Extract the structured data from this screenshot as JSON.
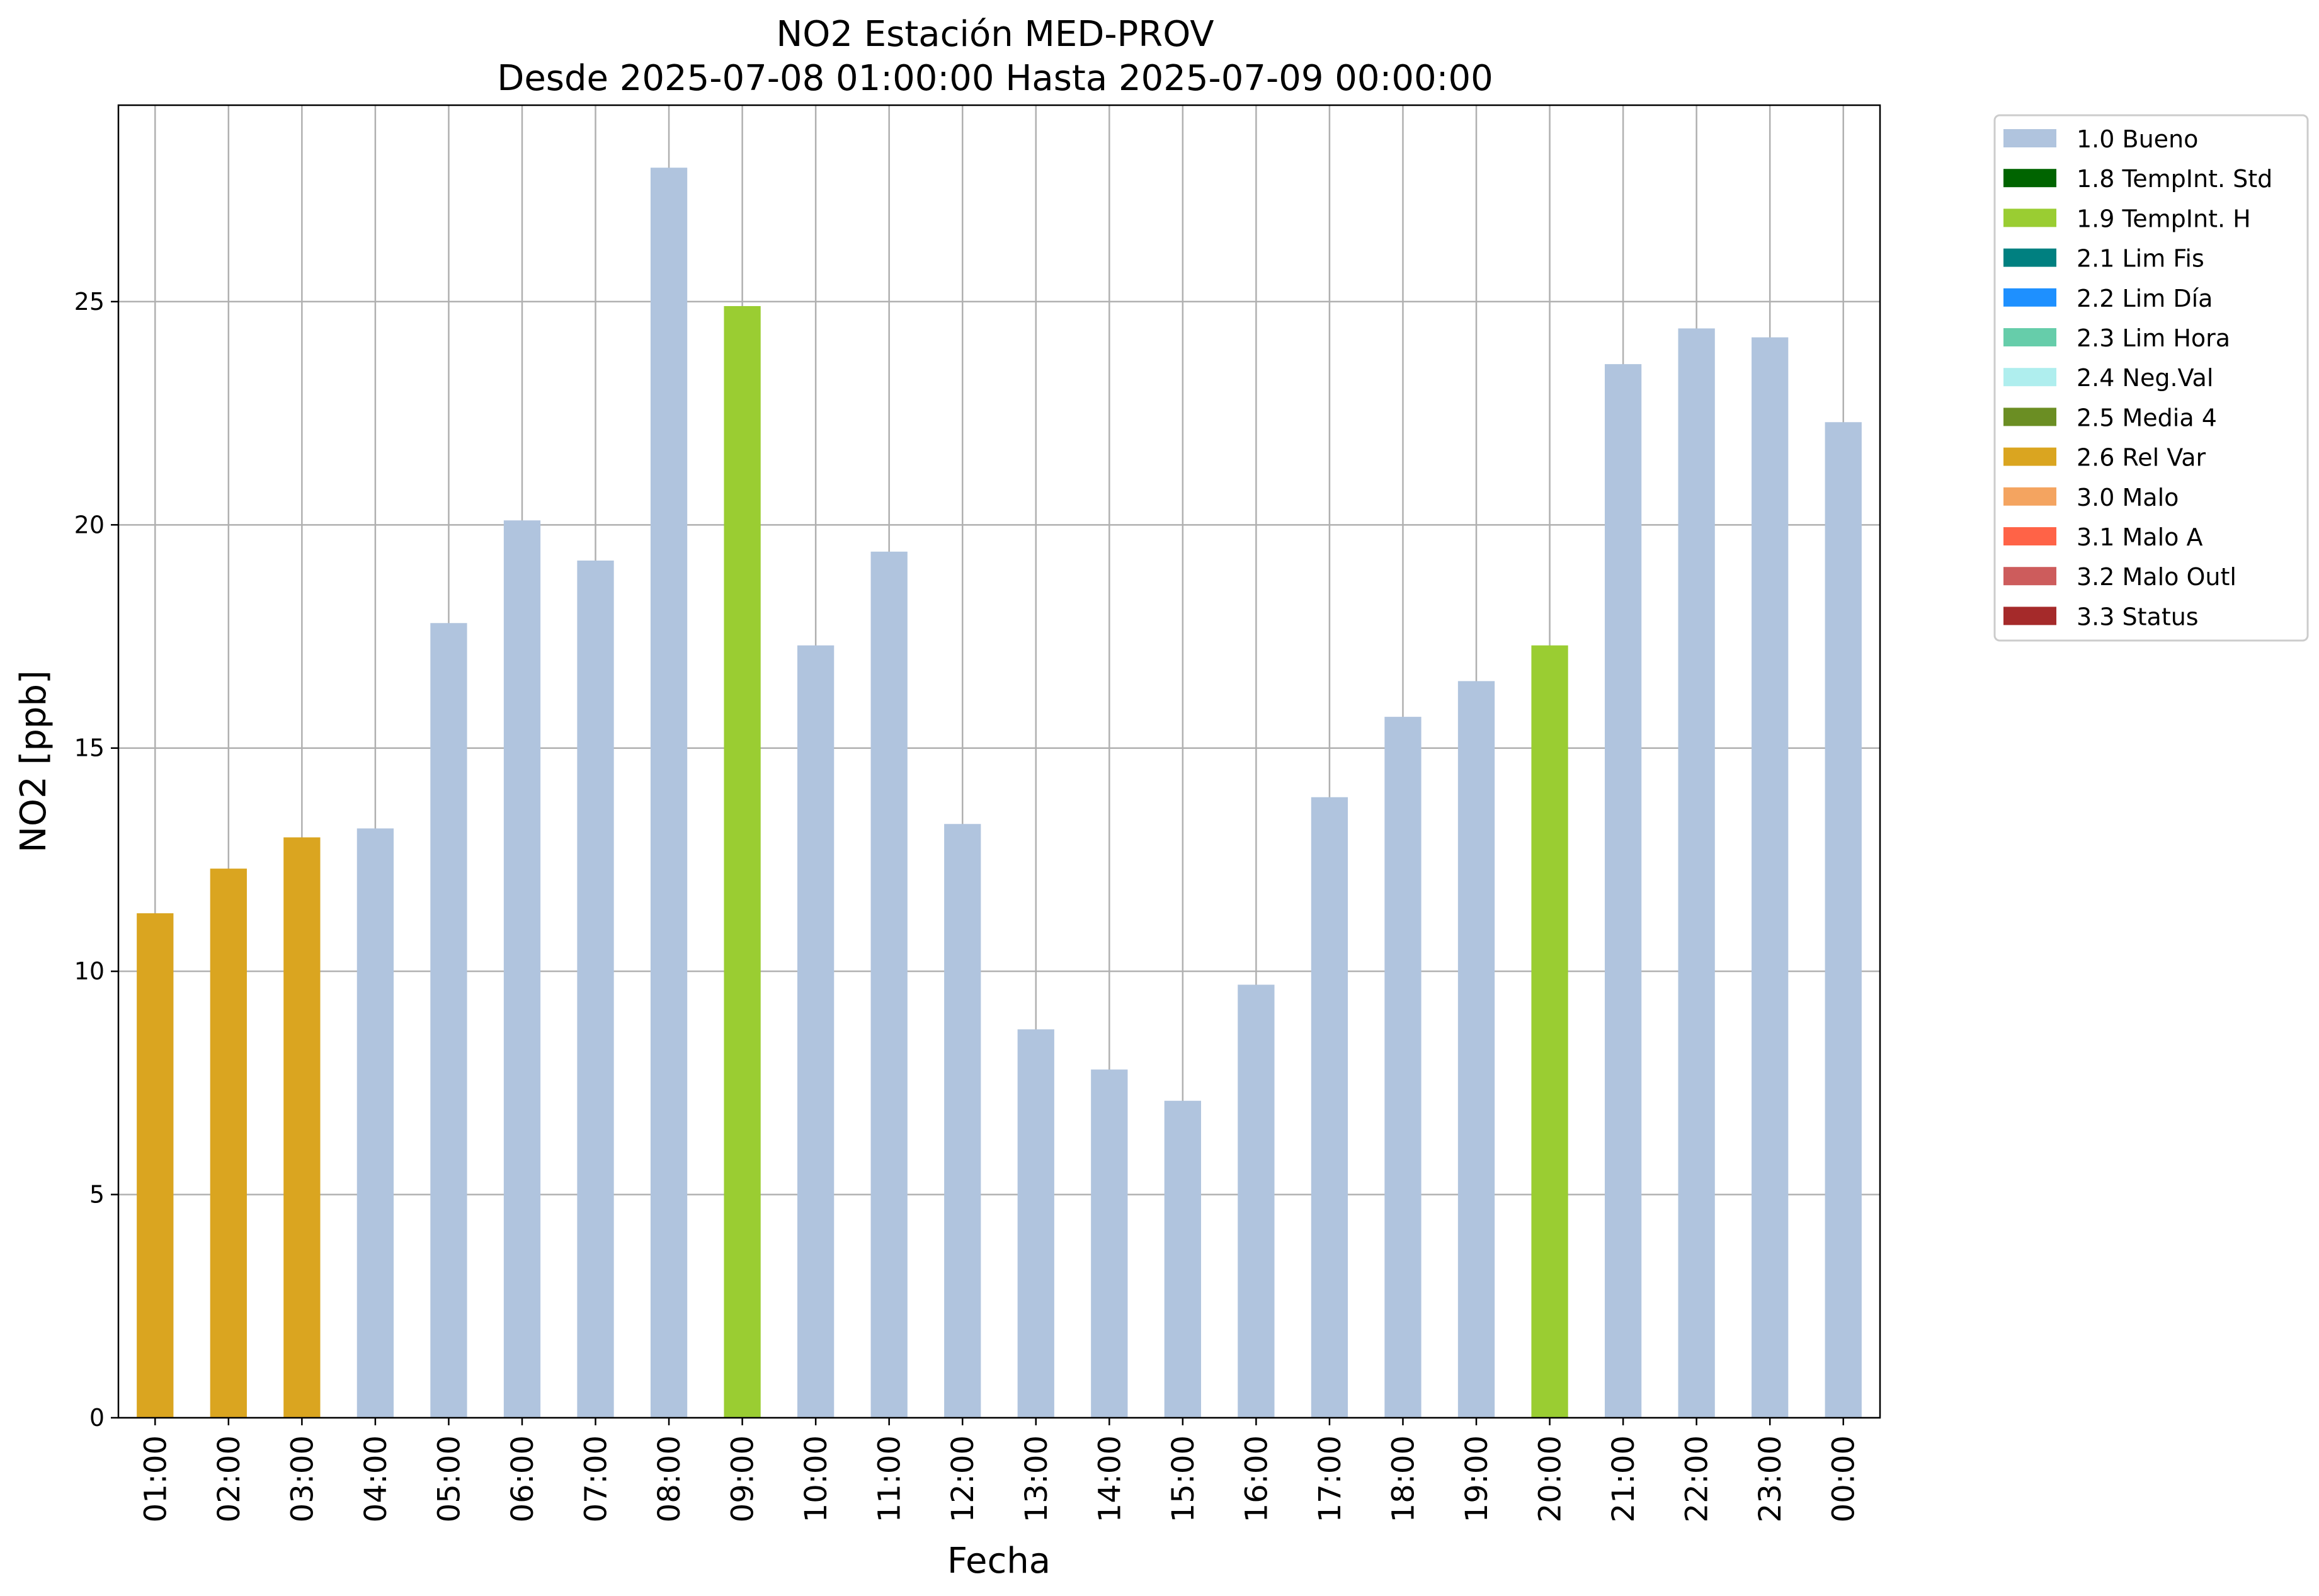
{
  "chart_data": {
    "type": "bar",
    "title": "NO2 Estación MED-PROV",
    "subtitle": "Desde 2025-07-08 01:00:00 Hasta 2025-07-09 00:00:00",
    "xlabel": "Fecha",
    "ylabel": "NO2 [ppb]",
    "ylim": [
      0,
      29.4
    ],
    "yticks": [
      0,
      5,
      10,
      15,
      20,
      25
    ],
    "grid": true,
    "legend_position": "outside-right",
    "categories": [
      "01:00",
      "02:00",
      "03:00",
      "04:00",
      "05:00",
      "06:00",
      "07:00",
      "08:00",
      "09:00",
      "10:00",
      "11:00",
      "12:00",
      "13:00",
      "14:00",
      "15:00",
      "16:00",
      "17:00",
      "18:00",
      "19:00",
      "20:00",
      "21:00",
      "22:00",
      "23:00",
      "00:00"
    ],
    "values": [
      11.3,
      12.3,
      13.0,
      13.2,
      17.8,
      20.1,
      19.2,
      28.0,
      24.9,
      17.3,
      19.4,
      13.3,
      8.7,
      7.8,
      7.1,
      9.7,
      13.9,
      15.7,
      16.5,
      17.3,
      23.6,
      24.4,
      24.2,
      22.3
    ],
    "flags": [
      "2.6 Rel Var",
      "2.6 Rel Var",
      "2.6 Rel Var",
      "1.0 Bueno",
      "1.0 Bueno",
      "1.0 Bueno",
      "1.0 Bueno",
      "1.0 Bueno",
      "1.9 TempInt. H",
      "1.0 Bueno",
      "1.0 Bueno",
      "1.0 Bueno",
      "1.0 Bueno",
      "1.0 Bueno",
      "1.0 Bueno",
      "1.0 Bueno",
      "1.0 Bueno",
      "1.0 Bueno",
      "1.0 Bueno",
      "1.9 TempInt. H",
      "1.0 Bueno",
      "1.0 Bueno",
      "1.0 Bueno",
      "1.0 Bueno"
    ],
    "legend": [
      {
        "label": "1.0 Bueno",
        "color": "#b0c4de"
      },
      {
        "label": "1.8 TempInt. Std",
        "color": "#006400"
      },
      {
        "label": "1.9 TempInt. H",
        "color": "#9acd32"
      },
      {
        "label": "2.1 Lim Fis",
        "color": "#008080"
      },
      {
        "label": "2.2 Lim Día",
        "color": "#1e90ff"
      },
      {
        "label": "2.3 Lim Hora",
        "color": "#66cdaa"
      },
      {
        "label": "2.4 Neg.Val",
        "color": "#afeeee"
      },
      {
        "label": "2.5 Media 4",
        "color": "#6b8e23"
      },
      {
        "label": "2.6 Rel Var",
        "color": "#daa520"
      },
      {
        "label": "3.0 Malo",
        "color": "#f4a460"
      },
      {
        "label": "3.1 Malo A",
        "color": "#ff6347"
      },
      {
        "label": "3.2 Malo Outl",
        "color": "#cd5c5c"
      },
      {
        "label": "3.3 Status",
        "color": "#a52a2a"
      }
    ]
  }
}
